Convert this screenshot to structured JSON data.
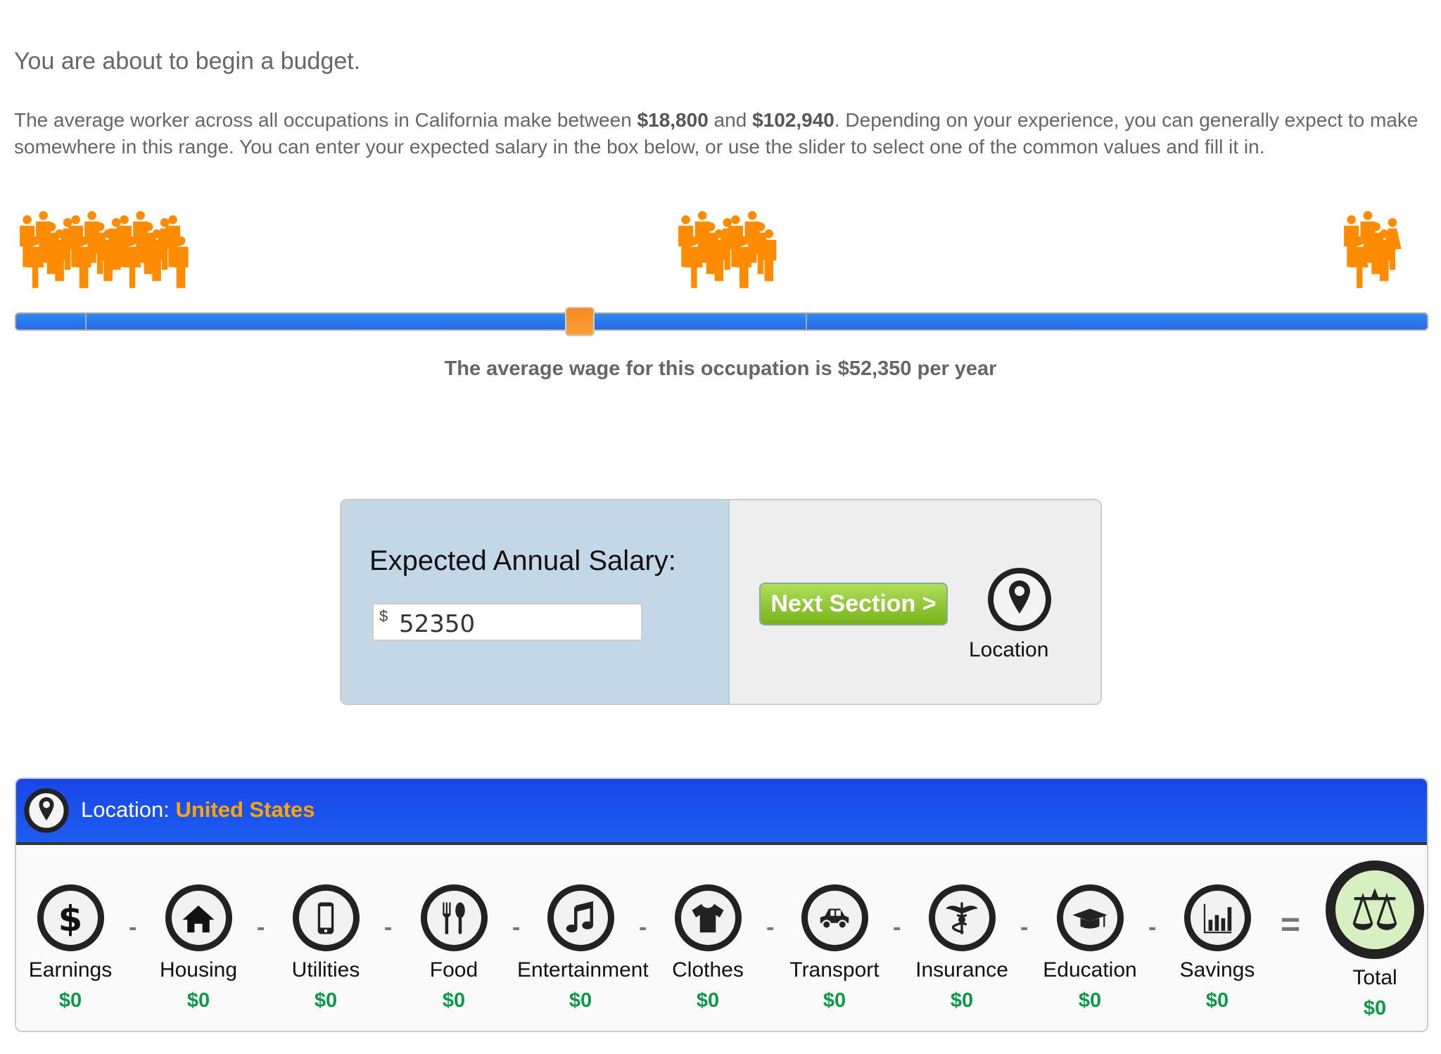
{
  "intro": {
    "title": "You are about to begin a budget.",
    "p1": "The average worker across all occupations in California make between ",
    "min": "$18,800",
    "p2": " and ",
    "max": "$102,940",
    "p3": ". Depending on your experience, you can generally expect to make somewhere in this range. You can enter your expected salary in the box below, or use the slider to select one of the common values and fill it in."
  },
  "slider": {
    "wage_text": "The average wage for this occupation is $52,350 per year",
    "value": 52350,
    "min": 18800,
    "max": 102940,
    "colors": {
      "track": "#2a78ec",
      "handle": "#f8921f",
      "people": "#ff8c00"
    }
  },
  "salary": {
    "label": "Expected Annual Salary:",
    "currency": "$",
    "value": "52350"
  },
  "next_button": "Next Section >",
  "location_button": "Location",
  "panel": {
    "location_label": "Location: ",
    "location_value": "United States",
    "items": [
      {
        "label": "Earnings",
        "value": "$0",
        "icon": "dollar-icon"
      },
      {
        "label": "Housing",
        "value": "$0",
        "icon": "house-icon"
      },
      {
        "label": "Utilities",
        "value": "$0",
        "icon": "phone-icon"
      },
      {
        "label": "Food",
        "value": "$0",
        "icon": "fork-spoon-icon"
      },
      {
        "label": "Entertainment",
        "value": "$0",
        "icon": "music-note-icon"
      },
      {
        "label": "Clothes",
        "value": "$0",
        "icon": "shirt-icon"
      },
      {
        "label": "Transport",
        "value": "$0",
        "icon": "car-icon"
      },
      {
        "label": "Insurance",
        "value": "$0",
        "icon": "caduceus-icon"
      },
      {
        "label": "Education",
        "value": "$0",
        "icon": "graduation-cap-icon"
      },
      {
        "label": "Savings",
        "value": "$0",
        "icon": "bar-chart-icon"
      }
    ],
    "operator_minus": "-",
    "operator_equals": "=",
    "total": {
      "label": "Total",
      "value": "$0",
      "icon": "scales-icon"
    }
  }
}
